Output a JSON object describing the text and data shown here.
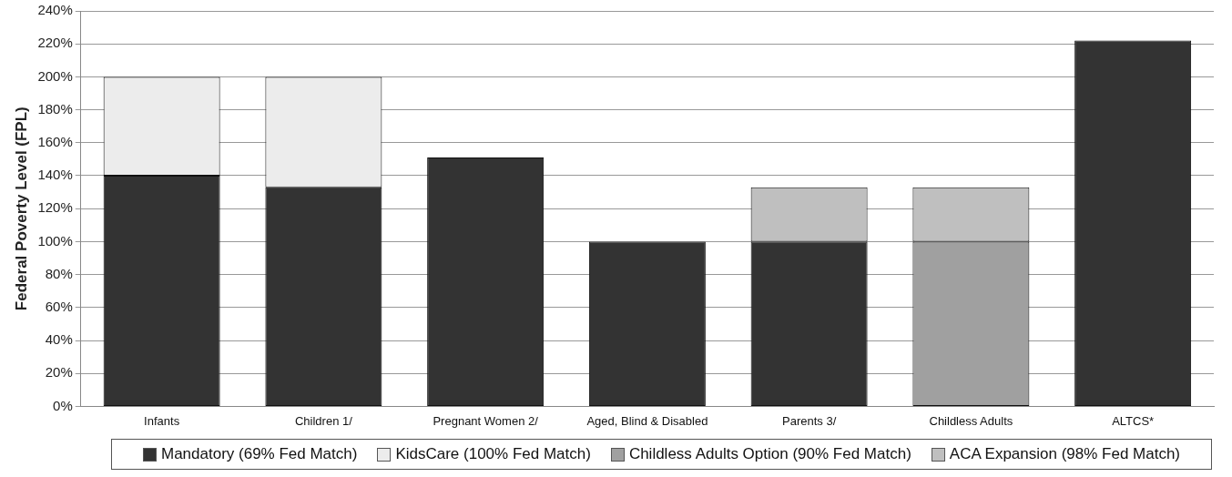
{
  "chart_data": {
    "type": "bar",
    "ylabel": "Federal Poverty Level (FPL)",
    "stacked": true,
    "categories": [
      "Infants",
      "Children 1/",
      "Pregnant Women 2/",
      "Aged, Blind & Disabled",
      "Parents 3/",
      "Childless Adults",
      "ALTCS*"
    ],
    "series": [
      {
        "name": "Mandatory (69% Fed Match)",
        "color": "#333333",
        "values": [
          140,
          133,
          151,
          100,
          100,
          null,
          222
        ]
      },
      {
        "name": "KidsCare (100% Fed Match)",
        "color": "#ececec",
        "values": [
          60,
          67,
          null,
          null,
          null,
          null,
          null
        ]
      },
      {
        "name": "Childless Adults Option (90% Fed Match)",
        "color": "#a0a0a0",
        "values": [
          null,
          null,
          null,
          null,
          null,
          100,
          null
        ]
      },
      {
        "name": "ACA Expansion (98% Fed Match)",
        "color": "#bfbfbf",
        "values": [
          null,
          null,
          null,
          null,
          33,
          33,
          null
        ]
      }
    ],
    "ylim": [
      0,
      240
    ],
    "yticks": [
      {
        "value": 0,
        "label": "0%"
      },
      {
        "value": 20,
        "label": "20%"
      },
      {
        "value": 40,
        "label": "40%"
      },
      {
        "value": 60,
        "label": "60%"
      },
      {
        "value": 80,
        "label": "80%"
      },
      {
        "value": 100,
        "label": "100%"
      },
      {
        "value": 120,
        "label": "120%"
      },
      {
        "value": 140,
        "label": "140%"
      },
      {
        "value": 160,
        "label": "160%"
      },
      {
        "value": 180,
        "label": "180%"
      },
      {
        "value": 200,
        "label": "200%"
      },
      {
        "value": 220,
        "label": "220%"
      },
      {
        "value": 240,
        "label": "240%"
      }
    ],
    "grid": "y",
    "legend": "bottom"
  }
}
